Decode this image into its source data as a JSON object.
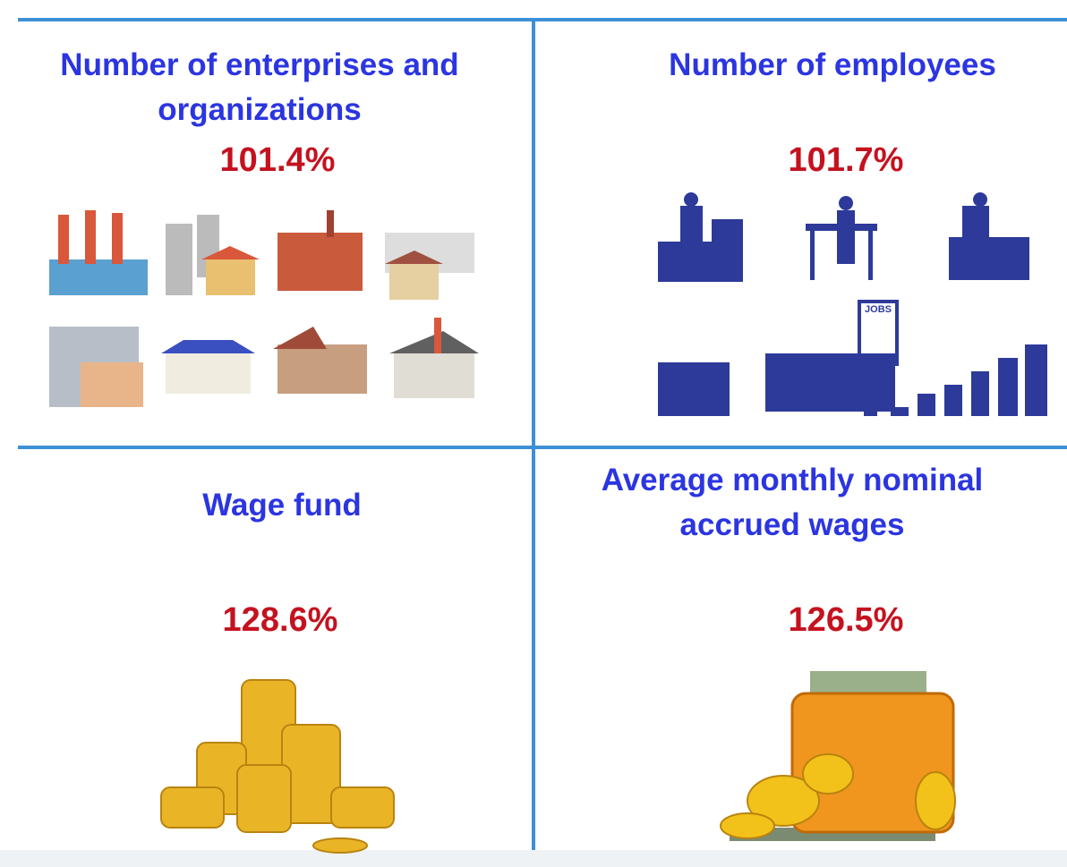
{
  "panels": [
    {
      "title": "Number of enterprises and organizations",
      "value": "101.4%"
    },
    {
      "title": "Number of employees",
      "value": "101.7%",
      "sign": "JOBS"
    },
    {
      "title": "Wage fund",
      "value": "128.6%"
    },
    {
      "title": "Average monthly nominal accrued wages",
      "value": "126.5%"
    }
  ]
}
